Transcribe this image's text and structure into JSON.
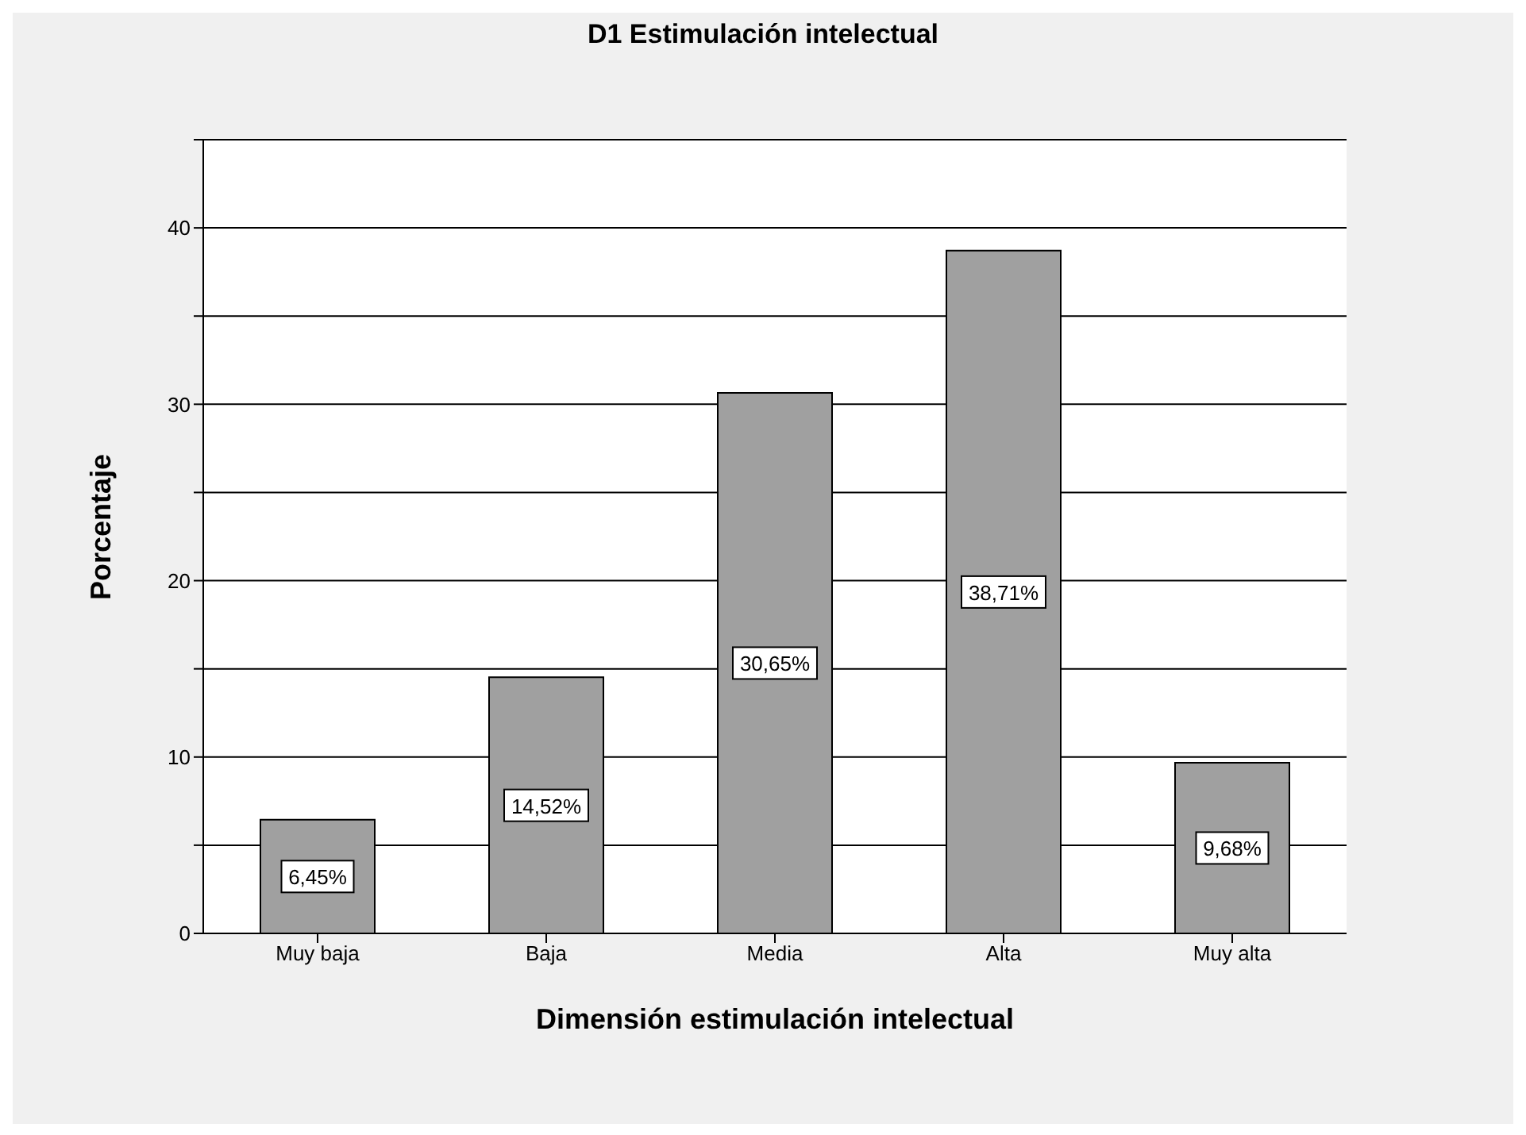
{
  "chart_data": {
    "type": "bar",
    "title": "D1 Estimulación intelectual",
    "xlabel": "Dimensión estimulación intelectual",
    "ylabel": "Porcentaje",
    "categories": [
      "Muy baja",
      "Baja",
      "Media",
      "Alta",
      "Muy alta"
    ],
    "values": [
      6.45,
      14.52,
      30.65,
      38.71,
      9.68
    ],
    "value_labels": [
      "6,45%",
      "14,52%",
      "30,65%",
      "38,71%",
      "9,68%"
    ],
    "color": "#a0a0a0",
    "ylim": [
      0,
      45
    ],
    "yticks": [
      0,
      {
        "value": 5,
        "label": null
      },
      10,
      {
        "value": 15,
        "label": null
      },
      20,
      {
        "value": 25,
        "label": null
      },
      30,
      {
        "value": 35,
        "label": null
      },
      40,
      {
        "value": 45,
        "label": null
      }
    ],
    "grid": "y"
  }
}
